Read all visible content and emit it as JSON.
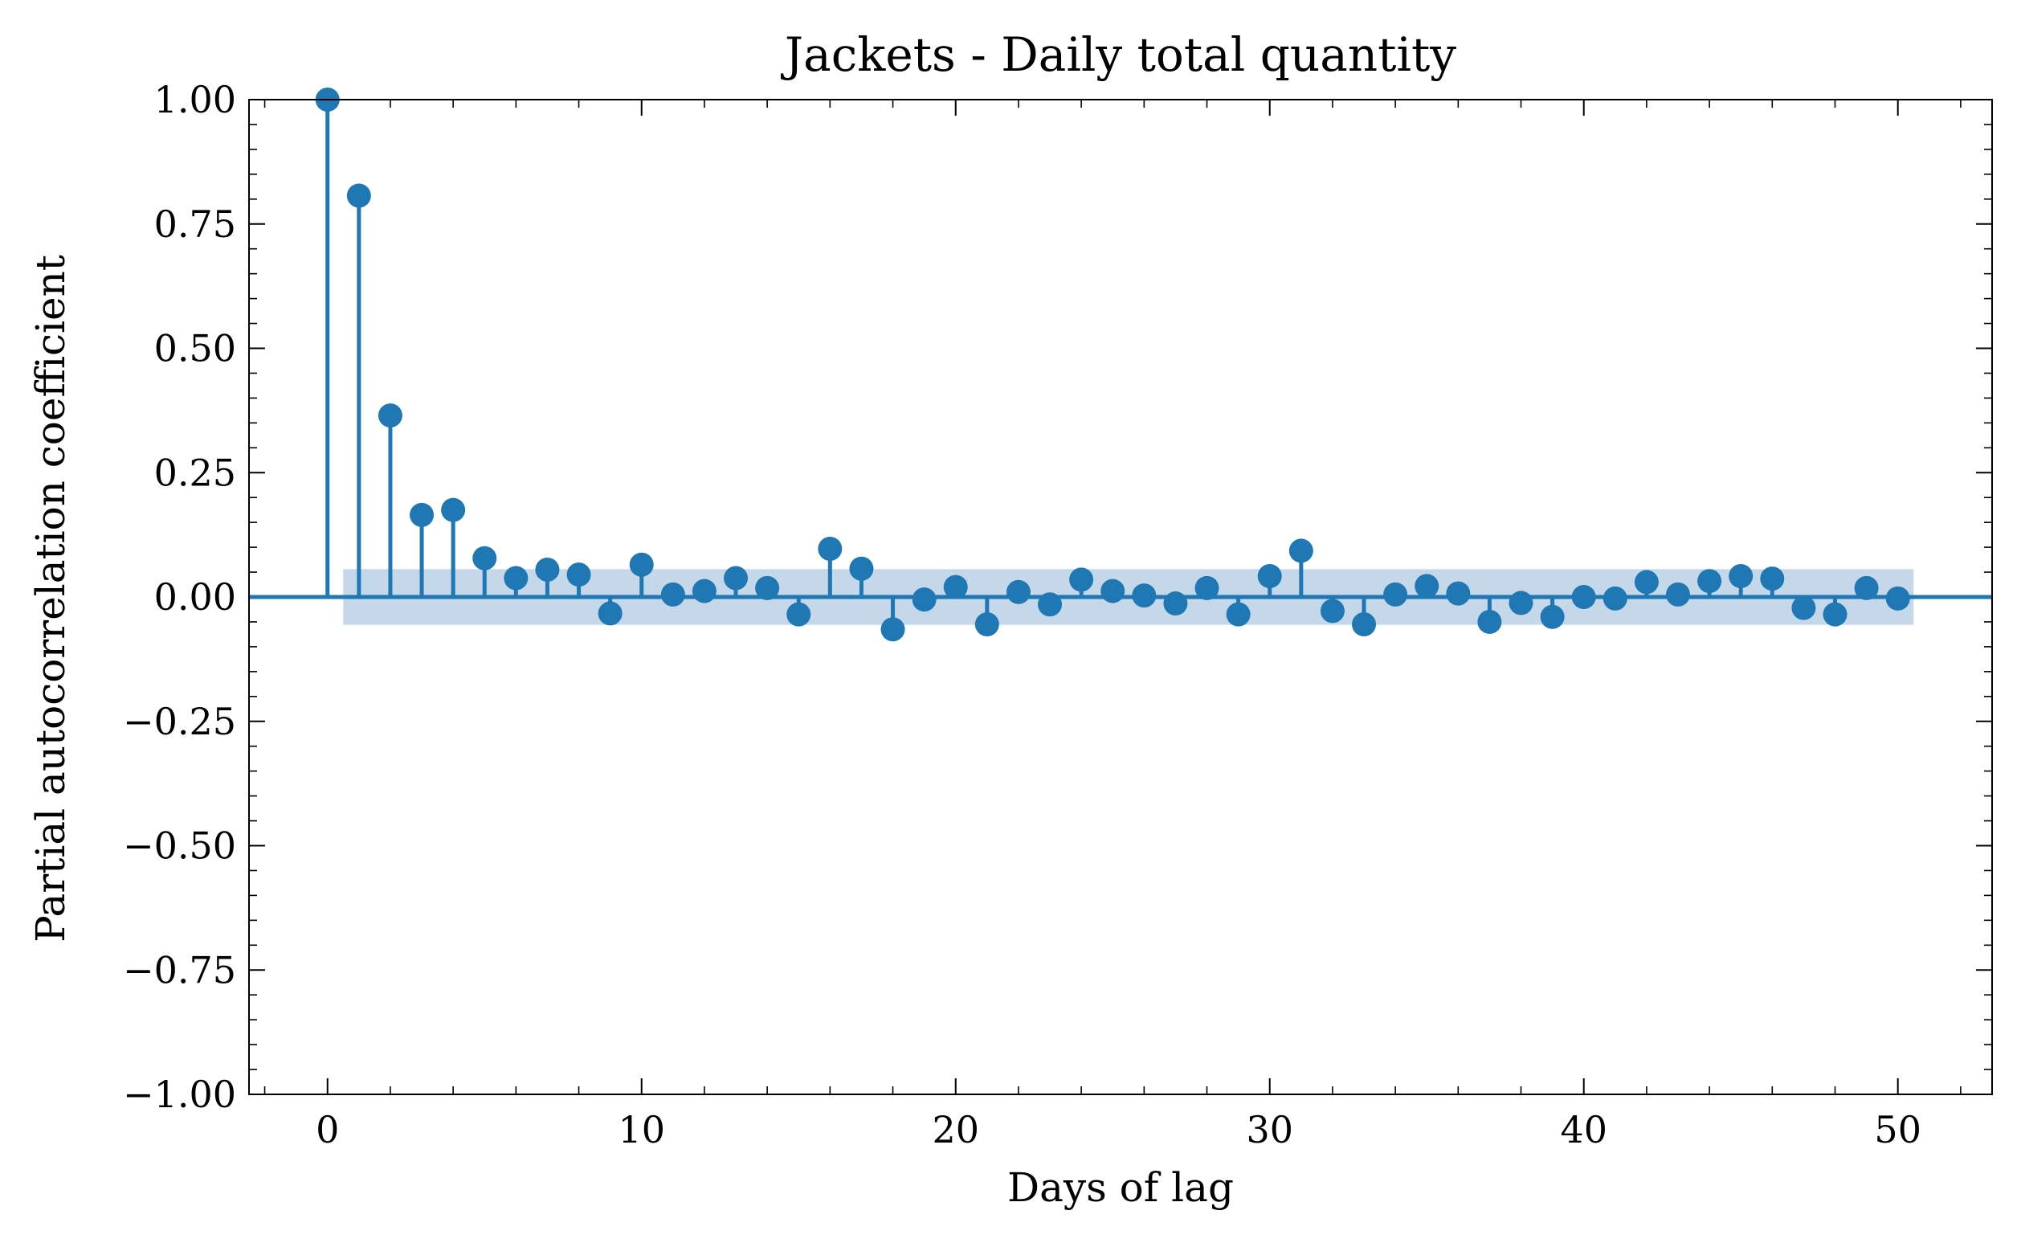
{
  "chart_data": {
    "type": "stem",
    "title": "Jackets - Daily total quantity",
    "xlabel": "Days of lag",
    "ylabel": "Partial autocorrelation coefficient",
    "xlim": [
      -2.5,
      53
    ],
    "ylim": [
      -1.0,
      1.0
    ],
    "x_ticks": [
      0,
      10,
      20,
      30,
      40,
      50
    ],
    "x_tick_labels": [
      "0",
      "10",
      "20",
      "30",
      "40",
      "50"
    ],
    "y_ticks": [
      1.0,
      0.75,
      0.5,
      0.25,
      0.0,
      -0.25,
      -0.5,
      -0.75,
      -1.0
    ],
    "y_tick_labels": [
      "1.00",
      "0.75",
      "0.50",
      "0.25",
      "0.00",
      "−0.25",
      "−0.50",
      "−0.75",
      "−1.00"
    ],
    "confidence_band": {
      "x_range": [
        0.5,
        50.5
      ],
      "y_range": [
        -0.056,
        0.056
      ]
    },
    "color": "#1f77b4",
    "band_color": "#c5d8ea",
    "lags": [
      0,
      1,
      2,
      3,
      4,
      5,
      6,
      7,
      8,
      9,
      10,
      11,
      12,
      13,
      14,
      15,
      16,
      17,
      18,
      19,
      20,
      21,
      22,
      23,
      24,
      25,
      26,
      27,
      28,
      29,
      30,
      31,
      32,
      33,
      34,
      35,
      36,
      37,
      38,
      39,
      40,
      41,
      42,
      43,
      44,
      45,
      46,
      47,
      48,
      49,
      50
    ],
    "values": [
      1.0,
      0.807,
      0.365,
      0.165,
      0.175,
      0.078,
      0.038,
      0.055,
      0.045,
      -0.033,
      0.065,
      0.005,
      0.012,
      0.038,
      0.018,
      -0.035,
      0.097,
      0.057,
      -0.065,
      -0.005,
      0.02,
      -0.055,
      0.01,
      -0.015,
      0.035,
      0.012,
      0.003,
      -0.013,
      0.018,
      -0.035,
      0.042,
      0.093,
      -0.028,
      -0.055,
      0.005,
      0.022,
      0.007,
      -0.05,
      -0.012,
      -0.04,
      0.0,
      -0.003,
      0.03,
      0.005,
      0.032,
      0.042,
      0.037,
      -0.022,
      -0.035,
      0.018,
      -0.003
    ]
  }
}
